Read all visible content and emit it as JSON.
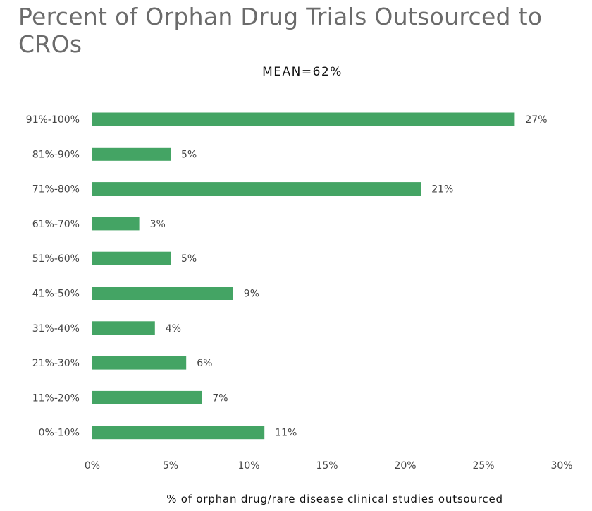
{
  "chart_data": {
    "type": "bar",
    "orientation": "horizontal",
    "title": "Percent of Orphan Drug Trials Outsourced to CROs",
    "subtitle": "MEAN=62%",
    "xlabel": "% of orphan drug/rare disease clinical studies outsourced",
    "ylabel": "",
    "categories": [
      "91%-100%",
      "81%-90%",
      "71%-80%",
      "61%-70%",
      "51%-60%",
      "41%-50%",
      "31%-40%",
      "21%-30%",
      "11%-20%",
      "0%-10%"
    ],
    "values": [
      27,
      5,
      21,
      3,
      5,
      9,
      4,
      6,
      7,
      11
    ],
    "value_labels": [
      "27%",
      "5%",
      "21%",
      "3%",
      "5%",
      "9%",
      "4%",
      "6%",
      "7%",
      "11%"
    ],
    "xlim": [
      0,
      30
    ],
    "x_ticks": [
      0,
      5,
      10,
      15,
      20,
      25,
      30
    ],
    "x_tick_labels": [
      "0%",
      "5%",
      "10%",
      "15%",
      "20%",
      "25%",
      "30%"
    ],
    "grid": false,
    "legend": "none",
    "bar_color": "#44a464"
  }
}
